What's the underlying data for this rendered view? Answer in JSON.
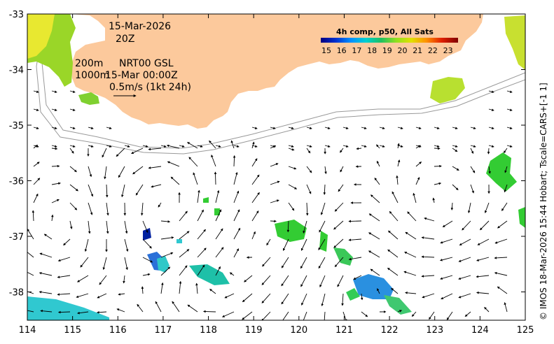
{
  "map": {
    "x_ticks": [
      "114",
      "115",
      "116",
      "117",
      "118",
      "119",
      "120",
      "121",
      "122",
      "123",
      "124",
      "125"
    ],
    "y_ticks": [
      "-33",
      "-34",
      "-35",
      "-36",
      "-37",
      "-38"
    ],
    "annotations": {
      "date": "15-Mar-2026",
      "hour": "20Z",
      "depth1": "200m",
      "depth2": "1000m",
      "product": "NRT00 GSL",
      "product_time": "15-Mar 00:00Z",
      "scale": "0.5m/s (1kt 24h)"
    },
    "legend": {
      "title": "4h comp, p50, All Sats",
      "values": [
        "15",
        "16",
        "17",
        "18",
        "19",
        "20",
        "21",
        "22",
        "23"
      ],
      "colors": [
        "#000080",
        "#0030d0",
        "#0090ff",
        "#00d0d0",
        "#20c060",
        "#90e020",
        "#e0e000",
        "#ff9000",
        "#e02000",
        "#800000"
      ]
    },
    "credit": "© IMOS 18-Mar-2026 15:44 Hobart; Tscale=CARS+[-1 1]",
    "colors": {
      "land": "#fcc99c",
      "sst_green": "#33cc33",
      "sst_yellow": "#e8e830",
      "sst_blue": "#2a7fe0",
      "sst_cyan": "#20c8d0"
    }
  }
}
